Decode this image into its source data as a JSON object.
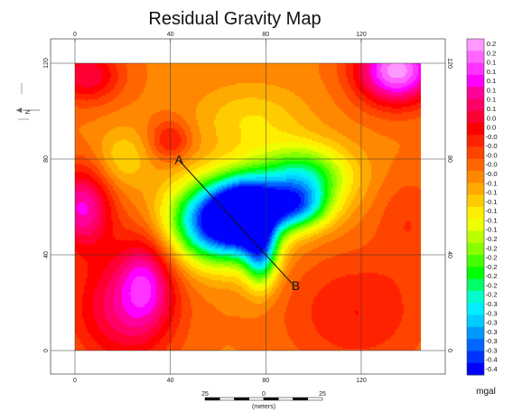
{
  "title": "Residual Gravity Map",
  "colors": [
    "#ff99ff",
    "#ff66ff",
    "#ff33ff",
    "#ff00ff",
    "#ff0099",
    "#ff0066",
    "#ff0033",
    "#ff0000",
    "#ff2200",
    "#ff4400",
    "#ff6600",
    "#ff8800",
    "#ffaa00",
    "#ffcc00",
    "#ffee00",
    "#eeff00",
    "#bbff00",
    "#88ff00",
    "#44ff00",
    "#00ff00",
    "#00ff66",
    "#00ffcc",
    "#00eeff",
    "#00ccff",
    "#0099ff",
    "#0066ff",
    "#0033ff",
    "#0000ff"
  ],
  "chart_data": {
    "type": "heatmap",
    "title": "Residual Gravity Map",
    "unit": "mgal",
    "x_ticks": [
      "0",
      "40",
      "80",
      "120"
    ],
    "y_ticks": [
      "0",
      "40",
      "80",
      "120"
    ],
    "x_tick_values": [
      0,
      40,
      80,
      120
    ],
    "y_tick_values": [
      0,
      40,
      80,
      120
    ],
    "xlim": [
      0,
      145
    ],
    "ylim": [
      0,
      120
    ],
    "colorbar_labels": [
      "0.2",
      "0.2",
      "0.1",
      "0.1",
      "0.1",
      "0.1",
      "0.1",
      "0.1",
      "0.0",
      "0.0",
      "-0.0",
      "-0.0",
      "-0.0",
      "-0.0",
      "-0.0",
      "-0.1",
      "-0.1",
      "-0.1",
      "-0.1",
      "-0.1",
      "-0.1",
      "-0.2",
      "-0.2",
      "-0.2",
      "-0.2",
      "-0.2",
      "-0.2",
      "-0.2",
      "-0.3",
      "-0.3",
      "-0.3",
      "-0.3",
      "-0.3",
      "-0.3",
      "-0.4",
      "-0.4"
    ],
    "colorbar_range": [
      0.25,
      -0.45
    ],
    "profile": {
      "start": {
        "label": "A",
        "x": 44,
        "y": 79
      },
      "end": {
        "label": "B",
        "x": 91,
        "y": 28
      }
    },
    "anomalies": [
      {
        "x": 60,
        "y": 54,
        "value": -0.45,
        "sx": 14,
        "sy": 12
      },
      {
        "x": 92,
        "y": 60,
        "value": -0.31,
        "sx": 10,
        "sy": 7
      },
      {
        "x": 72,
        "y": 58,
        "value": -0.36,
        "sx": 9,
        "sy": 10
      },
      {
        "x": 78,
        "y": 40,
        "value": -0.27,
        "sx": 5,
        "sy": 10
      },
      {
        "x": 95,
        "y": 73,
        "value": -0.26,
        "sx": 14,
        "sy": 9
      },
      {
        "x": 20,
        "y": 80,
        "value": -0.1,
        "sx": 8,
        "sy": 9
      },
      {
        "x": 74,
        "y": 96,
        "value": -0.1,
        "sx": 16,
        "sy": 10
      },
      {
        "x": 135,
        "y": 117,
        "value": 0.24,
        "sx": 12,
        "sy": 10
      },
      {
        "x": 3,
        "y": 60,
        "value": 0.15,
        "sx": 9,
        "sy": 12
      },
      {
        "x": 20,
        "y": 18,
        "value": 0.11,
        "sx": 16,
        "sy": 18
      },
      {
        "x": 30,
        "y": 30,
        "value": 0.09,
        "sx": 8,
        "sy": 14
      },
      {
        "x": 5,
        "y": 115,
        "value": 0.1,
        "sx": 10,
        "sy": 8
      },
      {
        "x": 118,
        "y": 16,
        "value": 0.05,
        "sx": 22,
        "sy": 18
      },
      {
        "x": 140,
        "y": 55,
        "value": 0.02,
        "sx": 10,
        "sy": 14
      },
      {
        "x": 40,
        "y": 88,
        "value": 0.06,
        "sx": 6,
        "sy": 6
      }
    ],
    "background_value": -0.03
  },
  "scalebar": {
    "labels": [
      "25",
      "0",
      "25"
    ],
    "caption": "(meters)"
  },
  "north_label": "N"
}
